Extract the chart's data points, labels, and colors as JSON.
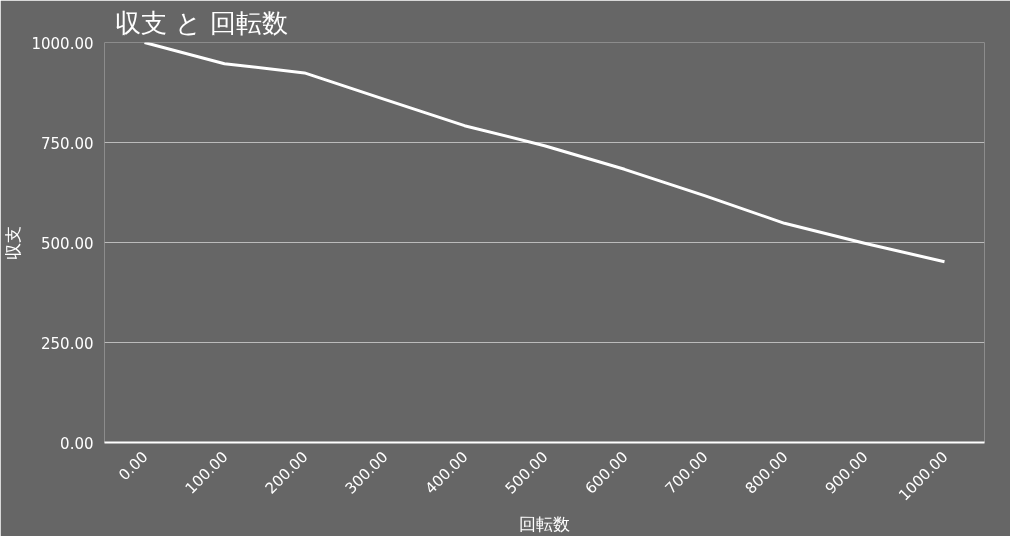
{
  "chart_data": {
    "type": "line",
    "title": "収支 と 回転数",
    "xlabel": "回転数",
    "ylabel": "収支",
    "x": [
      0,
      100,
      200,
      300,
      400,
      500,
      600,
      700,
      800,
      900,
      1000
    ],
    "series": [
      {
        "color": "#ffffff",
        "values": [
          1000,
          947,
          924,
          858,
          792,
          742,
          683,
          617,
          548,
          498,
          452
        ]
      }
    ],
    "xlim": [
      -50,
      1050
    ],
    "xticks": [
      {
        "value": 0,
        "label": "0.00"
      },
      {
        "value": 100,
        "label": "100.00"
      },
      {
        "value": 200,
        "label": "200.00"
      },
      {
        "value": 300,
        "label": "300.00"
      },
      {
        "value": 400,
        "label": "400.00"
      },
      {
        "value": 500,
        "label": "500.00"
      },
      {
        "value": 600,
        "label": "600.00"
      },
      {
        "value": 700,
        "label": "700.00"
      },
      {
        "value": 800,
        "label": "800.00"
      },
      {
        "value": 900,
        "label": "900.00"
      },
      {
        "value": 1000,
        "label": "1000.00"
      }
    ],
    "ylim": [
      0,
      1000
    ],
    "yticks": [
      {
        "value": 0,
        "label": "0.00"
      },
      {
        "value": 250,
        "label": "250.00"
      },
      {
        "value": 500,
        "label": "500.00"
      },
      {
        "value": 750,
        "label": "750.00"
      },
      {
        "value": 1000,
        "label": "1000.00"
      }
    ],
    "grid": "y",
    "marker": "none",
    "line_style": "solid"
  }
}
